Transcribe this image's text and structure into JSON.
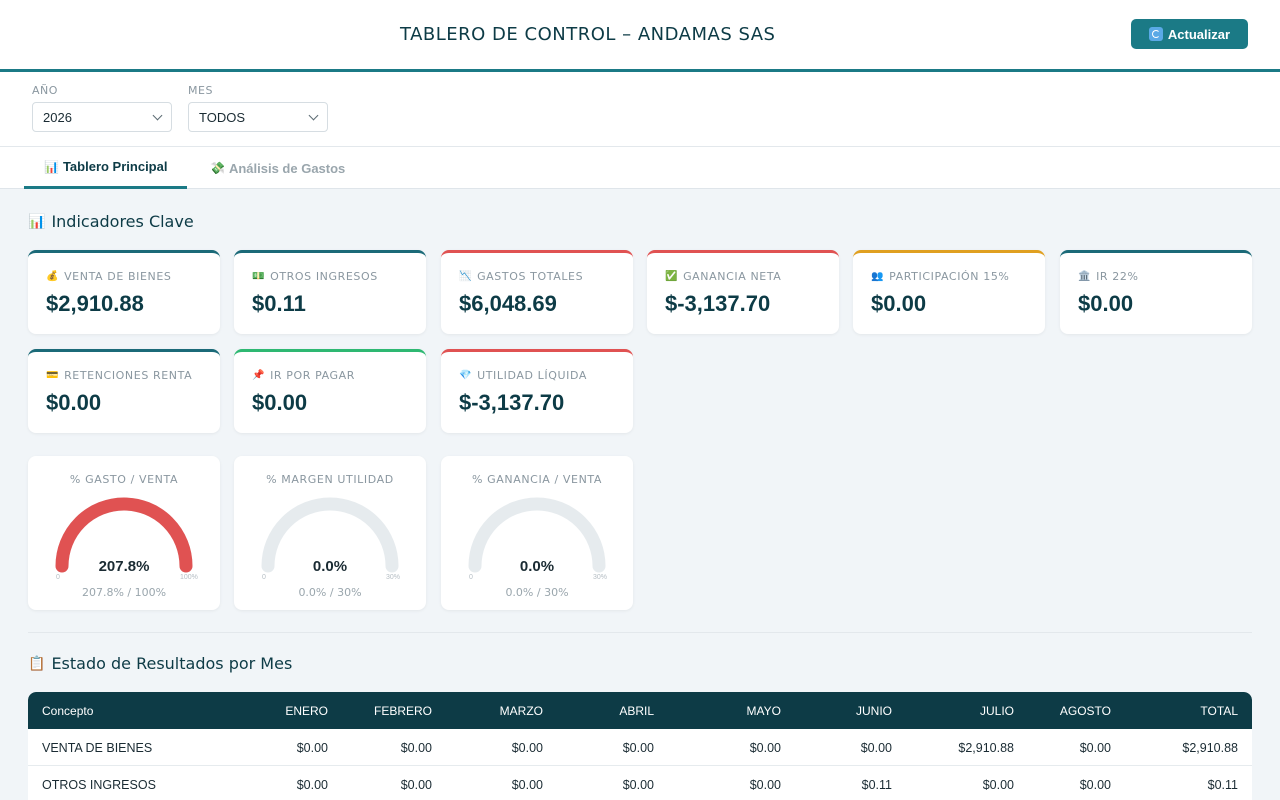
{
  "header": {
    "title": "TABLERO DE CONTROL – ANDAMAS SAS",
    "refresh_label": "Actualizar",
    "refresh_icon": "refresh-icon"
  },
  "filters": {
    "year": {
      "label": "AÑO",
      "value": "2026"
    },
    "month": {
      "label": "MES",
      "value": "TODOS"
    }
  },
  "tabs": [
    {
      "icon": "📊",
      "label": "Tablero Principal",
      "active": true
    },
    {
      "icon": "💸",
      "label": "Análisis de Gastos",
      "active": false
    }
  ],
  "kpi_section": {
    "icon": "📊",
    "title": "Indicadores Clave"
  },
  "kpis": [
    {
      "icon": "💰",
      "label": "VENTA DE BIENES",
      "value": "$2,910.88",
      "accent": "#1b6a78"
    },
    {
      "icon": "💵",
      "label": "OTROS INGRESOS",
      "value": "$0.11",
      "accent": "#1b6a78"
    },
    {
      "icon": "📉",
      "label": "GASTOS TOTALES",
      "value": "$6,048.69",
      "accent": "#e05252"
    },
    {
      "icon": "✅",
      "label": "GANANCIA NETA",
      "value": "$-3,137.70",
      "accent": "#e05252"
    },
    {
      "icon": "👥",
      "label": "PARTICIPACIÓN 15%",
      "value": "$0.00",
      "accent": "#e0a020"
    },
    {
      "icon": "🏛️",
      "label": "IR 22%",
      "value": "$0.00",
      "accent": "#1b6a78"
    },
    {
      "icon": "💳",
      "label": "RETENCIONES RENTA",
      "value": "$0.00",
      "accent": "#1b6a78"
    },
    {
      "icon": "📌",
      "label": "IR POR PAGAR",
      "value": "$0.00",
      "accent": "#2eb872"
    },
    {
      "icon": "💎",
      "label": "UTILIDAD LÍQUIDA",
      "value": "$-3,137.70",
      "accent": "#e05252"
    }
  ],
  "gauges": [
    {
      "label": "% GASTO / VENTA",
      "value": "207.8%",
      "sub": "207.8% / 100%",
      "fill": 1.0,
      "min": "0",
      "max": "100%",
      "color": "#e05252"
    },
    {
      "label": "% MARGEN UTILIDAD",
      "value": "0.0%",
      "sub": "0.0% / 30%",
      "fill": 0.0,
      "min": "0",
      "max": "30%",
      "color": "#2eb872"
    },
    {
      "label": "% GANANCIA / VENTA",
      "value": "0.0%",
      "sub": "0.0% / 30%",
      "fill": 0.0,
      "min": "0",
      "max": "30%",
      "color": "#2eb872"
    }
  ],
  "results_section": {
    "icon": "📋",
    "title": "Estado de Resultados por Mes"
  },
  "table": {
    "columns": [
      "Concepto",
      "ENERO",
      "FEBRERO",
      "MARZO",
      "ABRIL",
      "MAYO",
      "JUNIO",
      "JULIO",
      "AGOSTO",
      "TOTAL"
    ],
    "rows": [
      [
        "VENTA DE BIENES",
        "$0.00",
        "$0.00",
        "$0.00",
        "$0.00",
        "$0.00",
        "$0.00",
        "$2,910.88",
        "$0.00",
        "$2,910.88"
      ],
      [
        "OTROS INGRESOS",
        "$0.00",
        "$0.00",
        "$0.00",
        "$0.00",
        "$0.00",
        "$0.11",
        "$0.00",
        "$0.00",
        "$0.11"
      ]
    ]
  }
}
